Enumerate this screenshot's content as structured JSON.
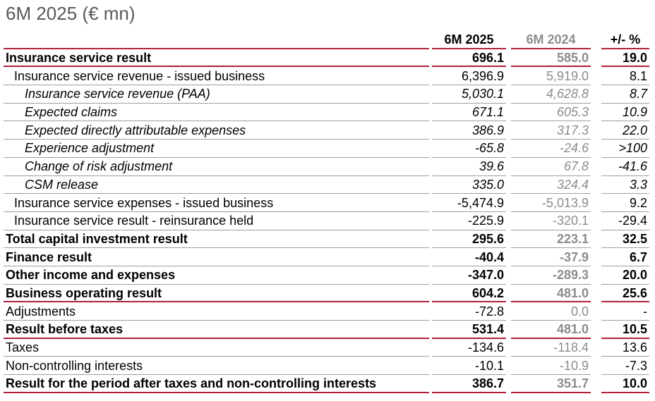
{
  "title": "6M 2025 (€ mn)",
  "headers": {
    "col_a": "6M 2025",
    "col_b": "6M 2024",
    "col_c": "+/- %"
  },
  "rows": [
    {
      "label": "Insurance service result",
      "a": "696.1",
      "b": "585.0",
      "c": "19.0",
      "style": "bold",
      "indent": 0,
      "rule": "red"
    },
    {
      "label": "Insurance service revenue - issued business",
      "a": "6,396.9",
      "b": "5,919.0",
      "c": "8.1",
      "style": "normal",
      "indent": 1,
      "rule": "grey"
    },
    {
      "label": "Insurance service revenue (PAA)",
      "a": "5,030.1",
      "b": "4,628.8",
      "c": "8.7",
      "style": "italic",
      "indent": 2,
      "rule": "grey"
    },
    {
      "label": "Expected claims",
      "a": "671.1",
      "b": "605.3",
      "c": "10.9",
      "style": "italic",
      "indent": 2,
      "rule": "grey"
    },
    {
      "label": "Expected directly attributable expenses",
      "a": "386.9",
      "b": "317.3",
      "c": "22.0",
      "style": "italic",
      "indent": 2,
      "rule": "grey"
    },
    {
      "label": "Experience adjustment",
      "a": "-65.8",
      "b": "-24.6",
      "c": ">100",
      "style": "italic",
      "indent": 2,
      "rule": "grey"
    },
    {
      "label": "Change of risk adjustment",
      "a": "39.6",
      "b": "67.8",
      "c": "-41.6",
      "style": "italic",
      "indent": 2,
      "rule": "grey"
    },
    {
      "label": "CSM release",
      "a": "335.0",
      "b": "324.4",
      "c": "3.3",
      "style": "italic",
      "indent": 2,
      "rule": "grey"
    },
    {
      "label": "Insurance service expenses - issued business",
      "a": "-5,474.9",
      "b": "-5,013.9",
      "c": "9.2",
      "style": "normal",
      "indent": 1,
      "rule": "grey"
    },
    {
      "label": "Insurance service result - reinsurance held",
      "a": "-225.9",
      "b": "-320.1",
      "c": "-29.4",
      "style": "normal",
      "indent": 1,
      "rule": "grey"
    },
    {
      "label": "Total capital investment result",
      "a": "295.6",
      "b": "223.1",
      "c": "32.5",
      "style": "bold",
      "indent": 0,
      "rule": "grey"
    },
    {
      "label": "Finance result",
      "a": "-40.4",
      "b": "-37.9",
      "c": "6.7",
      "style": "bold",
      "indent": 0,
      "rule": "grey"
    },
    {
      "label": "Other income and expenses",
      "a": "-347.0",
      "b": "-289.3",
      "c": "20.0",
      "style": "bold",
      "indent": 0,
      "rule": "grey"
    },
    {
      "label": "Business operating result",
      "a": "604.2",
      "b": "481.0",
      "c": "25.6",
      "style": "bold",
      "indent": 0,
      "rule": "red"
    },
    {
      "label": "Adjustments",
      "a": "-72.8",
      "b": "0.0",
      "c": "-",
      "style": "normal",
      "indent": 0,
      "rule": "grey"
    },
    {
      "label": "Result before taxes",
      "a": "531.4",
      "b": "481.0",
      "c": "10.5",
      "style": "bold",
      "indent": 0,
      "rule": "red"
    },
    {
      "label": "Taxes",
      "a": "-134.6",
      "b": "-118.4",
      "c": "13.6",
      "style": "normal",
      "indent": 0,
      "rule": "grey"
    },
    {
      "label": "Non-controlling interests",
      "a": "-10.1",
      "b": "-10.9",
      "c": "-7.3",
      "style": "normal",
      "indent": 0,
      "rule": "grey"
    },
    {
      "label": "Result for the period after taxes and non-controlling interests",
      "a": "386.7",
      "b": "351.7",
      "c": "10.0",
      "style": "bold",
      "indent": 0,
      "rule": "red"
    }
  ]
}
